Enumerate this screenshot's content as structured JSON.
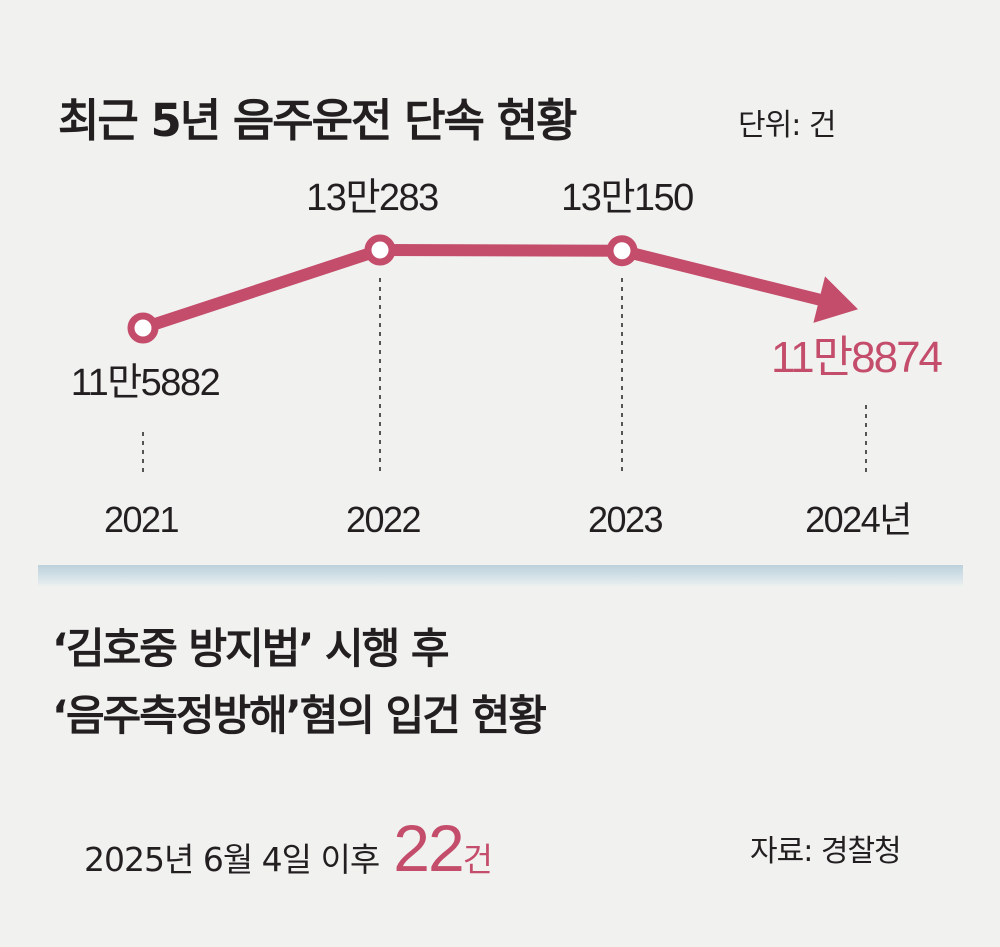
{
  "title": "최근 5년 음주운전 단속 현황",
  "unit_label": "단위: 건",
  "chart_data": {
    "type": "line",
    "title": "최근 5년 음주운전 단속 현황",
    "categories": [
      "2021",
      "2022",
      "2023",
      "2024년"
    ],
    "values": [
      115882,
      130283,
      130150,
      118874
    ],
    "data_labels": [
      "11만5882",
      "13만283",
      "13만150",
      "11만8874"
    ],
    "ylabel": "",
    "xlabel": "",
    "ylim": [
      110000,
      135000
    ],
    "grid": false,
    "highlight_index": 3,
    "last_point_marker": "arrow",
    "colors": {
      "line": "#c44d6b",
      "highlight_label": "#c44d6b",
      "marker_fill": "#ffffff",
      "guide": "#555555"
    }
  },
  "section2": {
    "title_line1": "‘김호중 방지법’ 시행 후",
    "title_line2": "‘음주측정방해’혐의 입건 현황",
    "stat_label": "2025년 6월 4일 이후",
    "stat_value": "22",
    "stat_unit": "건"
  },
  "source": "자료: 경찰청",
  "colors": {
    "accent": "#c44d6b",
    "background": "#f1f2f0",
    "text": "#231f20",
    "divider": "#bcd1dc"
  }
}
